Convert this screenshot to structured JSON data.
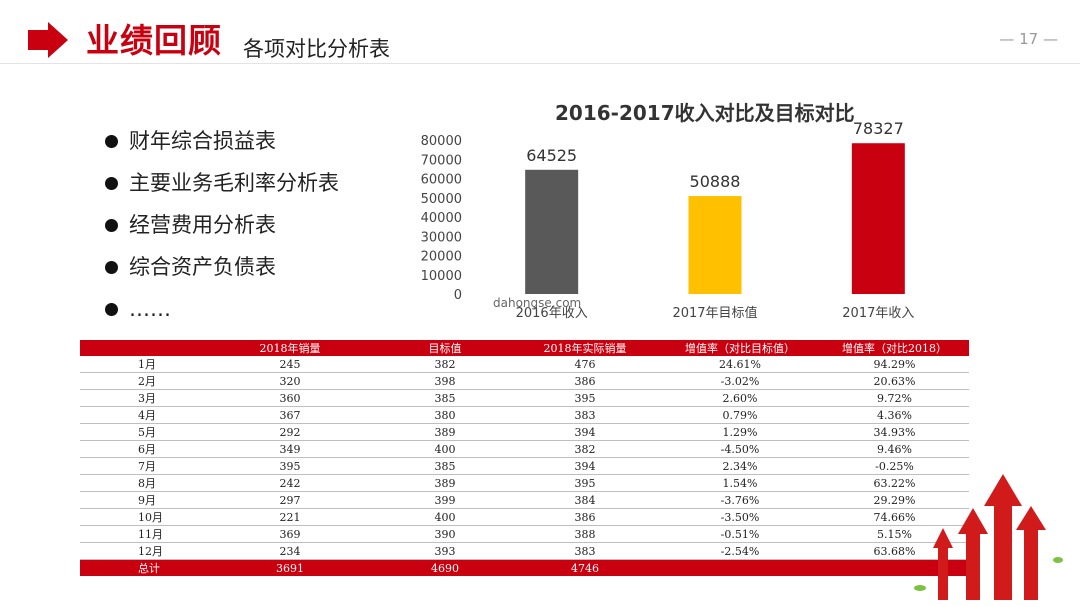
{
  "header": {
    "title": "业绩回顾",
    "subtitle": "各项对比分析表",
    "page_number": "— 17 —"
  },
  "bullets": [
    "财年综合损益表",
    "主要业务毛利率分析表",
    "经营费用分析表",
    "综合资产负债表",
    "……"
  ],
  "chart_data": {
    "type": "bar",
    "title": "2016-2017收入对比及目标对比",
    "categories": [
      "2016年收入",
      "2017年目标值",
      "2017年收入"
    ],
    "values": [
      64525,
      50888,
      78327
    ],
    "colors": [
      "#595959",
      "#ffc000",
      "#c8000f"
    ],
    "ylim": [
      0,
      80000
    ],
    "yticks": [
      0,
      10000,
      20000,
      30000,
      40000,
      50000,
      60000,
      70000,
      80000
    ],
    "grid": false,
    "xlabel": "",
    "ylabel": ""
  },
  "watermark": "dahongse.com",
  "table": {
    "headers": [
      "",
      "2018年销量",
      "目标值",
      "2018年实际销量",
      "增值率（对比目标值）",
      "增值率（对比2018）"
    ],
    "rows": [
      [
        "1月",
        "245",
        "382",
        "476",
        "24.61%",
        "94.29%"
      ],
      [
        "2月",
        "320",
        "398",
        "386",
        "-3.02%",
        "20.63%"
      ],
      [
        "3月",
        "360",
        "385",
        "395",
        "2.60%",
        "9.72%"
      ],
      [
        "4月",
        "367",
        "380",
        "383",
        "0.79%",
        "4.36%"
      ],
      [
        "5月",
        "292",
        "389",
        "394",
        "1.29%",
        "34.93%"
      ],
      [
        "6月",
        "349",
        "400",
        "382",
        "-4.50%",
        "9.46%"
      ],
      [
        "7月",
        "395",
        "385",
        "394",
        "2.34%",
        "-0.25%"
      ],
      [
        "8月",
        "242",
        "389",
        "395",
        "1.54%",
        "63.22%"
      ],
      [
        "9月",
        "297",
        "399",
        "384",
        "-3.76%",
        "29.29%"
      ],
      [
        "10月",
        "221",
        "400",
        "386",
        "-3.50%",
        "74.66%"
      ],
      [
        "11月",
        "369",
        "390",
        "388",
        "-0.51%",
        "5.15%"
      ],
      [
        "12月",
        "234",
        "393",
        "383",
        "-2.54%",
        "63.68%"
      ]
    ],
    "total": [
      "总计",
      "3691",
      "4690",
      "4746",
      "",
      ""
    ]
  },
  "colors": {
    "accent": "#c8000f"
  }
}
